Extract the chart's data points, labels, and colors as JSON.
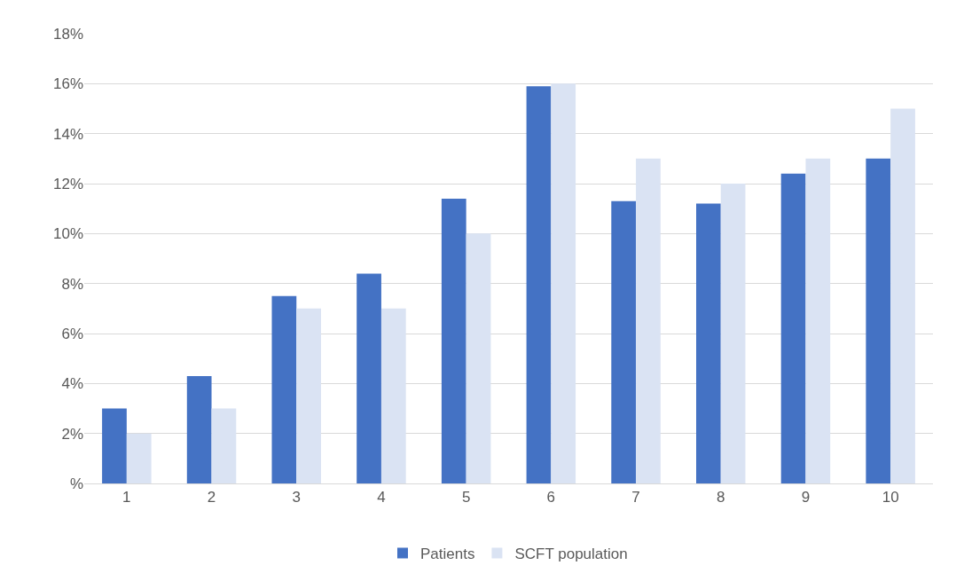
{
  "chart_data": {
    "type": "bar",
    "categories": [
      "1",
      "2",
      "3",
      "4",
      "5",
      "6",
      "7",
      "8",
      "9",
      "10"
    ],
    "series": [
      {
        "name": "Patients",
        "color": "#4472c4",
        "values": [
          3.0,
          4.3,
          7.5,
          8.4,
          11.4,
          15.9,
          11.3,
          11.2,
          12.4,
          13.0
        ]
      },
      {
        "name": "SCFT population",
        "color": "#dae3f3",
        "values": [
          2,
          3,
          7,
          7,
          10,
          16,
          13,
          12,
          13,
          15
        ]
      }
    ],
    "ylim": [
      0,
      18
    ],
    "yticks": [
      {
        "value": 0,
        "label": "%"
      },
      {
        "value": 2,
        "label": "2%"
      },
      {
        "value": 4,
        "label": "4%"
      },
      {
        "value": 6,
        "label": "6%"
      },
      {
        "value": 8,
        "label": "8%"
      },
      {
        "value": 10,
        "label": "10%"
      },
      {
        "value": 12,
        "label": "12%"
      },
      {
        "value": 14,
        "label": "14%"
      },
      {
        "value": 16,
        "label": "16%"
      },
      {
        "value": 18,
        "label": "18%"
      }
    ],
    "grid": "y",
    "legend": "bottom"
  }
}
